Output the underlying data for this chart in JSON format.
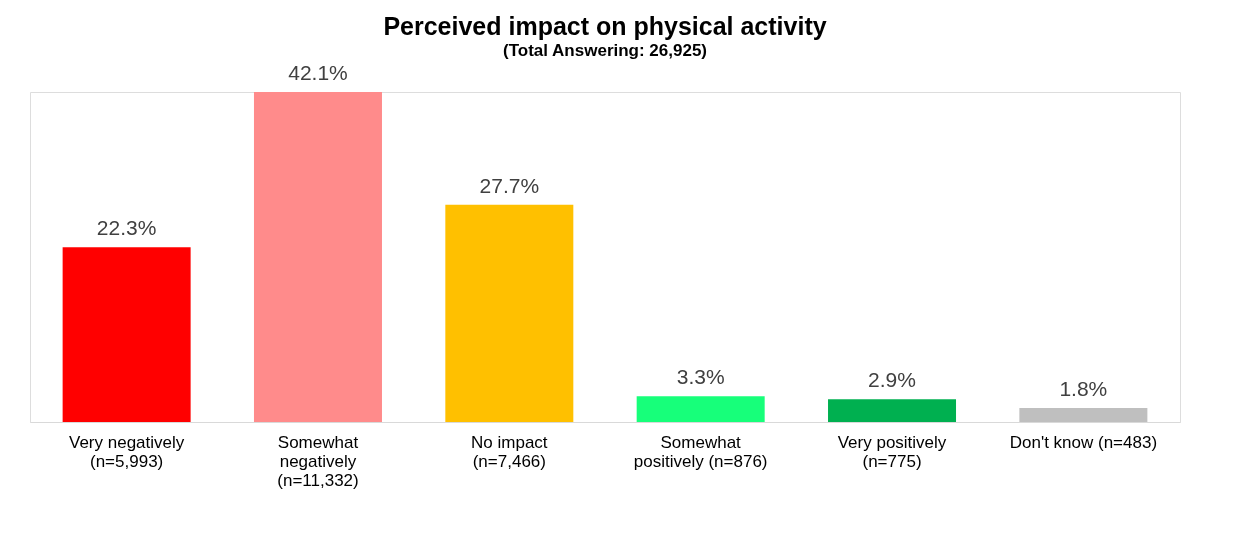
{
  "chart_data": {
    "type": "bar",
    "title": "Perceived impact on physical activity",
    "subtitle": "(Total Answering: 26,925)",
    "categories": [
      "Very negatively\n(n=5,993)",
      "Somewhat\nnegatively\n(n=11,332)",
      "No impact\n(n=7,466)",
      "Somewhat\npositively (n=876)",
      "Very positively\n(n=775)",
      "Don't know (n=483)"
    ],
    "values": [
      22.3,
      42.1,
      27.7,
      3.3,
      2.9,
      1.8
    ],
    "value_labels": [
      "22.3%",
      "42.1%",
      "27.7%",
      "3.3%",
      "2.9%",
      "1.8%"
    ],
    "colors": [
      "#ff0000",
      "#ff8b8b",
      "#ffc000",
      "#17ff7a",
      "#00b050",
      "#bfbfbf"
    ]
  }
}
